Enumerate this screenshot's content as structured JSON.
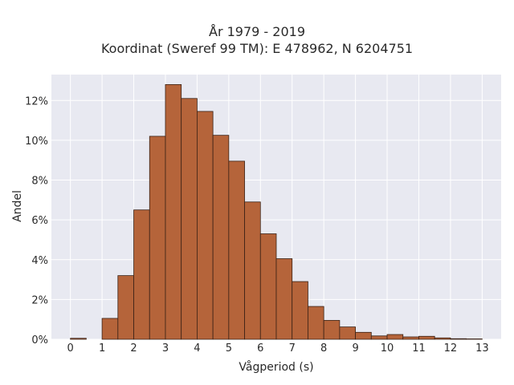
{
  "chart_data": {
    "type": "bar",
    "title": "År 1979 - 2019",
    "subtitle": "Koordinat (Sweref 99 TM): E 478962, N 6204751",
    "xlabel": "Vågperiod (s)",
    "ylabel": "Andel",
    "bin_width": 0.5,
    "bins_start": [
      0,
      0.5,
      1,
      1.5,
      2,
      2.5,
      3,
      3.5,
      4,
      4.5,
      5,
      5.5,
      6,
      6.5,
      7,
      7.5,
      8,
      8.5,
      9,
      9.5,
      10,
      10.5,
      11,
      11.5,
      12,
      12.5
    ],
    "values": [
      0.05,
      0.0,
      1.05,
      3.2,
      6.5,
      10.2,
      12.8,
      12.1,
      11.45,
      10.25,
      8.95,
      6.9,
      5.3,
      4.05,
      2.9,
      1.65,
      0.95,
      0.62,
      0.35,
      0.17,
      0.24,
      0.12,
      0.15,
      0.07,
      0.03,
      0.02
    ],
    "xticks": [
      0,
      1,
      2,
      3,
      4,
      5,
      6,
      7,
      8,
      9,
      10,
      11,
      12,
      13
    ],
    "yticks": [
      0,
      2,
      4,
      6,
      8,
      10,
      12
    ],
    "ytick_suffix": "%",
    "xlim": [
      -0.6,
      13.6
    ],
    "ylim": [
      0,
      13.3
    ],
    "grid": true,
    "colors": {
      "bar_fill": "#b5643a",
      "bar_stroke": "#3a2216",
      "plot_bg": "#e8e9f1",
      "grid": "#ffffff"
    }
  }
}
